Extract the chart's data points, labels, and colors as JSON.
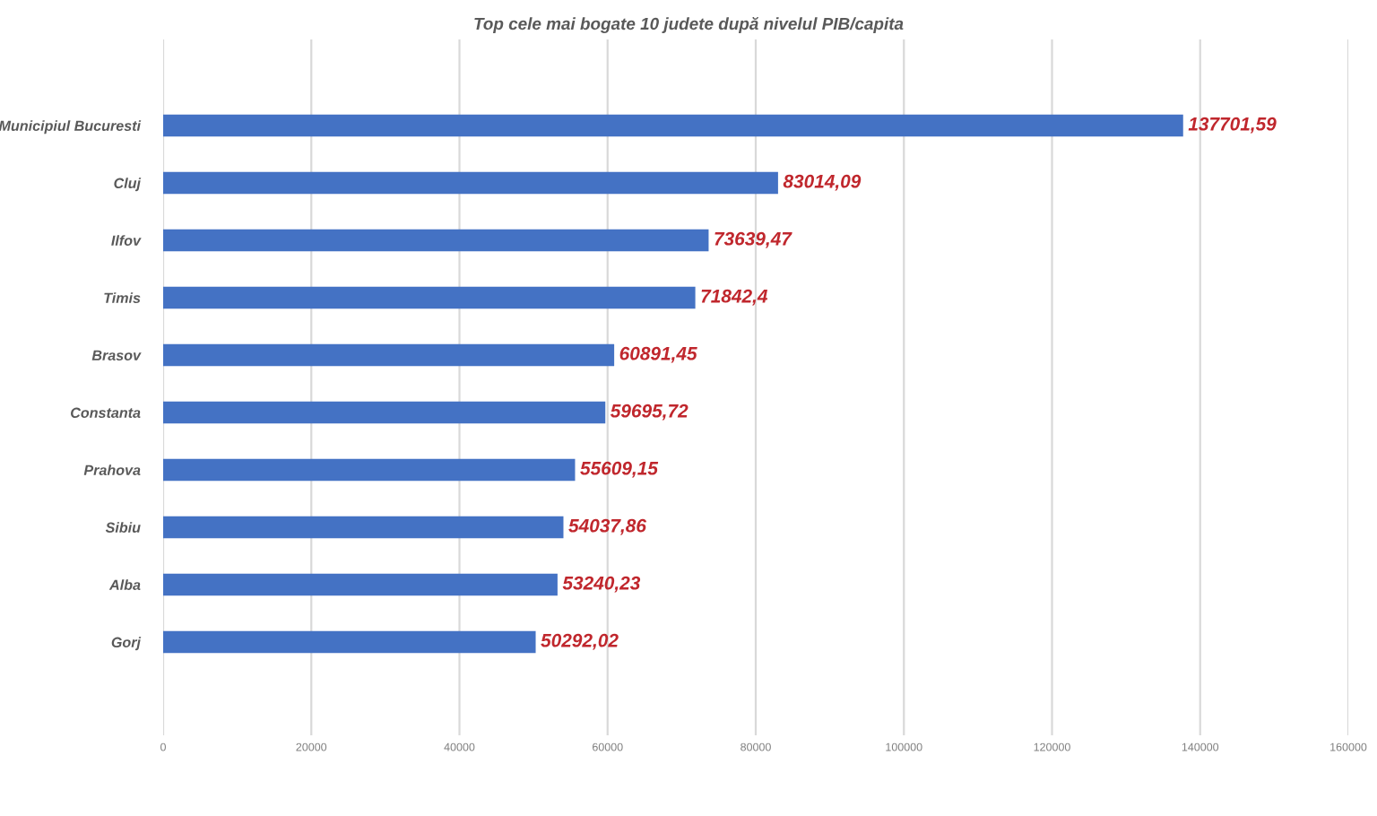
{
  "chart_data": {
    "type": "bar",
    "orientation": "horizontal",
    "title": "Top cele mai bogate 10 judete după nivelul PIB/capita",
    "categories": [
      "Municipiul Bucuresti",
      "Cluj",
      "Ilfov",
      "Timis",
      "Brasov",
      "Constanta",
      "Prahova",
      "Sibiu",
      "Alba",
      "Gorj"
    ],
    "values": [
      137701.59,
      83014.09,
      73639.47,
      71842.4,
      60891.45,
      59695.72,
      55609.15,
      54037.86,
      53240.23,
      50292.02
    ],
    "value_labels": [
      "137701,59",
      "83014,09",
      "73639,47",
      "71842,4",
      "60891,45",
      "59695,72",
      "55609,15",
      "54037,86",
      "53240,23",
      "50292,02"
    ],
    "color": "#4472c4",
    "xlim": [
      0,
      160000
    ],
    "xticks": [
      0,
      20000,
      40000,
      60000,
      80000,
      100000,
      120000,
      140000,
      160000
    ],
    "grid": "x",
    "legend": false
  }
}
